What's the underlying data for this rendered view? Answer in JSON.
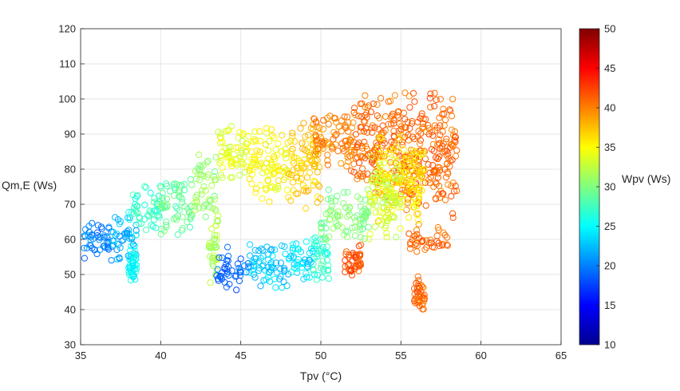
{
  "chart_data": {
    "type": "scatter",
    "title": "",
    "xlabel": "Tpv (°C)",
    "ylabel": "Qm,E (Ws)",
    "xlim": [
      35,
      65
    ],
    "ylim": [
      30,
      120
    ],
    "xticks": [
      35,
      40,
      45,
      50,
      55,
      60,
      65
    ],
    "yticks": [
      30,
      40,
      50,
      60,
      70,
      80,
      90,
      100,
      110,
      120
    ],
    "xtick_labels": [
      "35",
      "40",
      "45",
      "50",
      "55",
      "60",
      "65"
    ],
    "ytick_labels": [
      "30",
      "40",
      "50",
      "60",
      "70",
      "80",
      "90",
      "100",
      "110",
      "120"
    ],
    "grid": true,
    "marker": "open-circle",
    "colormap": "jet",
    "colorbar": {
      "label": "Wpv (Ws)",
      "limits": [
        10,
        50
      ],
      "ticks": [
        10,
        15,
        20,
        25,
        30,
        35,
        40,
        45,
        50
      ],
      "tick_labels": [
        "10",
        "15",
        "20",
        "25",
        "30",
        "35",
        "40",
        "45",
        "50"
      ]
    },
    "clusters_description_note": "",
    "clusters": [
      {
        "x": [
          35.0,
          37.5
        ],
        "y": [
          53,
          66
        ],
        "c": 20
      },
      {
        "x": [
          37.0,
          38.5
        ],
        "y": [
          52,
          68
        ],
        "c": 22
      },
      {
        "x": [
          38.0,
          38.5
        ],
        "y": [
          47,
          60
        ],
        "c": 25
      },
      {
        "x": [
          38.0,
          40.0
        ],
        "y": [
          60,
          76
        ],
        "c": 27
      },
      {
        "x": [
          40.0,
          42.0
        ],
        "y": [
          60,
          80
        ],
        "c": 29
      },
      {
        "x": [
          42.0,
          43.5
        ],
        "y": [
          65,
          85
        ],
        "c": 31
      },
      {
        "x": [
          43.0,
          43.6
        ],
        "y": [
          47,
          70
        ],
        "c": 32
      },
      {
        "x": [
          43.5,
          45.5
        ],
        "y": [
          75,
          94
        ],
        "c": 34
      },
      {
        "x": [
          45.5,
          48.0
        ],
        "y": [
          70,
          93
        ],
        "c": 35
      },
      {
        "x": [
          48.0,
          50.0
        ],
        "y": [
          68,
          95
        ],
        "c": 37
      },
      {
        "x": [
          49.5,
          52.0
        ],
        "y": [
          77,
          97
        ],
        "c": 40
      },
      {
        "x": [
          52.0,
          55.0
        ],
        "y": [
          70,
          103
        ],
        "c": 41
      },
      {
        "x": [
          55.0,
          58.5
        ],
        "y": [
          65,
          104
        ],
        "c": 41
      },
      {
        "x": [
          51.5,
          52.5
        ],
        "y": [
          48,
          60
        ],
        "c": 42
      },
      {
        "x": [
          55.5,
          58.0
        ],
        "y": [
          55,
          65
        ],
        "c": 41
      },
      {
        "x": [
          55.8,
          56.5
        ],
        "y": [
          38,
          50
        ],
        "c": 41
      },
      {
        "x": [
          53.5,
          56.5
        ],
        "y": [
          62,
          92
        ],
        "c": 36
      },
      {
        "x": [
          53.0,
          55.0
        ],
        "y": [
          58,
          85
        ],
        "c": 33
      },
      {
        "x": [
          50.0,
          53.0
        ],
        "y": [
          58,
          75
        ],
        "c": 30
      },
      {
        "x": [
          49.5,
          50.5
        ],
        "y": [
          48,
          62
        ],
        "c": 27
      },
      {
        "x": [
          48.0,
          49.5
        ],
        "y": [
          47,
          60
        ],
        "c": 24
      },
      {
        "x": [
          45.5,
          48.0
        ],
        "y": [
          44,
          60
        ],
        "c": 23
      },
      {
        "x": [
          43.5,
          45.5
        ],
        "y": [
          45,
          58
        ],
        "c": 19
      }
    ]
  }
}
